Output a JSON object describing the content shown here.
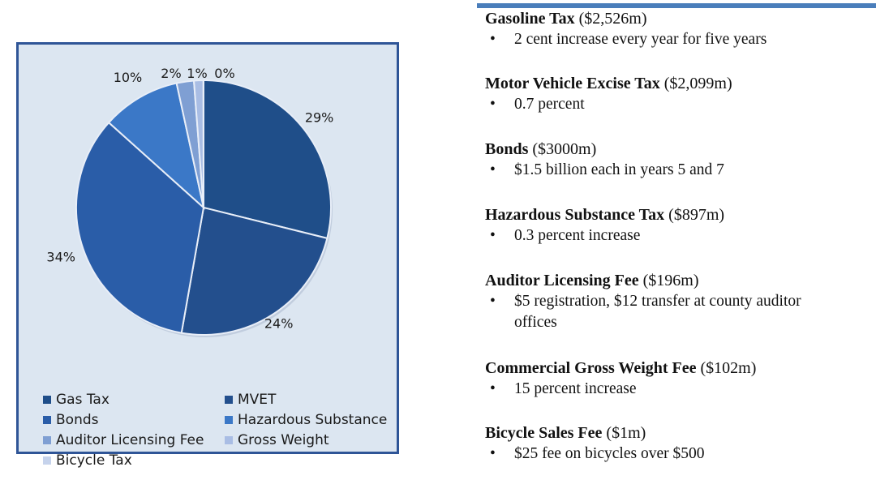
{
  "chart_data": {
    "type": "pie",
    "series": [
      {
        "label": "Gas Tax",
        "percent_label": "29%",
        "value": 29,
        "color": "#1f4e89"
      },
      {
        "label": "MVET",
        "percent_label": "24%",
        "value": 24,
        "color": "#234f8d"
      },
      {
        "label": "Bonds",
        "percent_label": "34%",
        "value": 34,
        "color": "#2a5da8"
      },
      {
        "label": "Hazardous Substance",
        "percent_label": "10%",
        "value": 10,
        "color": "#3b78c7"
      },
      {
        "label": "Auditor Licensing Fee",
        "percent_label": "2%",
        "value": 2.2,
        "color": "#7f9fd3"
      },
      {
        "label": "Gross Weight",
        "percent_label": "1%",
        "value": 1.2,
        "color": "#a9bde4"
      },
      {
        "label": "Bicycle Tax",
        "percent_label": "0%",
        "value": 0.02,
        "color": "#c6d3ec"
      }
    ],
    "legend_placement": "bottom"
  },
  "colors": {
    "frame_border": "#2f5597",
    "frame_background": "#dce6f1",
    "top_rule": "#4a7ebb"
  },
  "info": [
    {
      "name": "Gasoline Tax",
      "amount": "($2,526m)",
      "bullet": "2 cent increase every year for five years"
    },
    {
      "name": "Motor Vehicle Excise Tax",
      "amount": "($2,099m)",
      "bullet": "0.7 percent"
    },
    {
      "name": "Bonds",
      "amount": "($3000m)",
      "bullet": "$1.5 billion each in years 5 and 7"
    },
    {
      "name": "Hazardous Substance Tax",
      "amount": "($897m)",
      "bullet": "0.3 percent increase"
    },
    {
      "name": "Auditor Licensing Fee",
      "amount": "($196m)",
      "bullet": "$5 registration, $12 transfer at county auditor offices"
    },
    {
      "name": "Commercial Gross Weight Fee",
      "amount": "($102m)",
      "bullet": "15 percent increase"
    },
    {
      "name": "Bicycle Sales Fee",
      "amount": "($1m)",
      "bullet": "$25 fee on bicycles over $500"
    }
  ],
  "bullet_glyph": "•"
}
